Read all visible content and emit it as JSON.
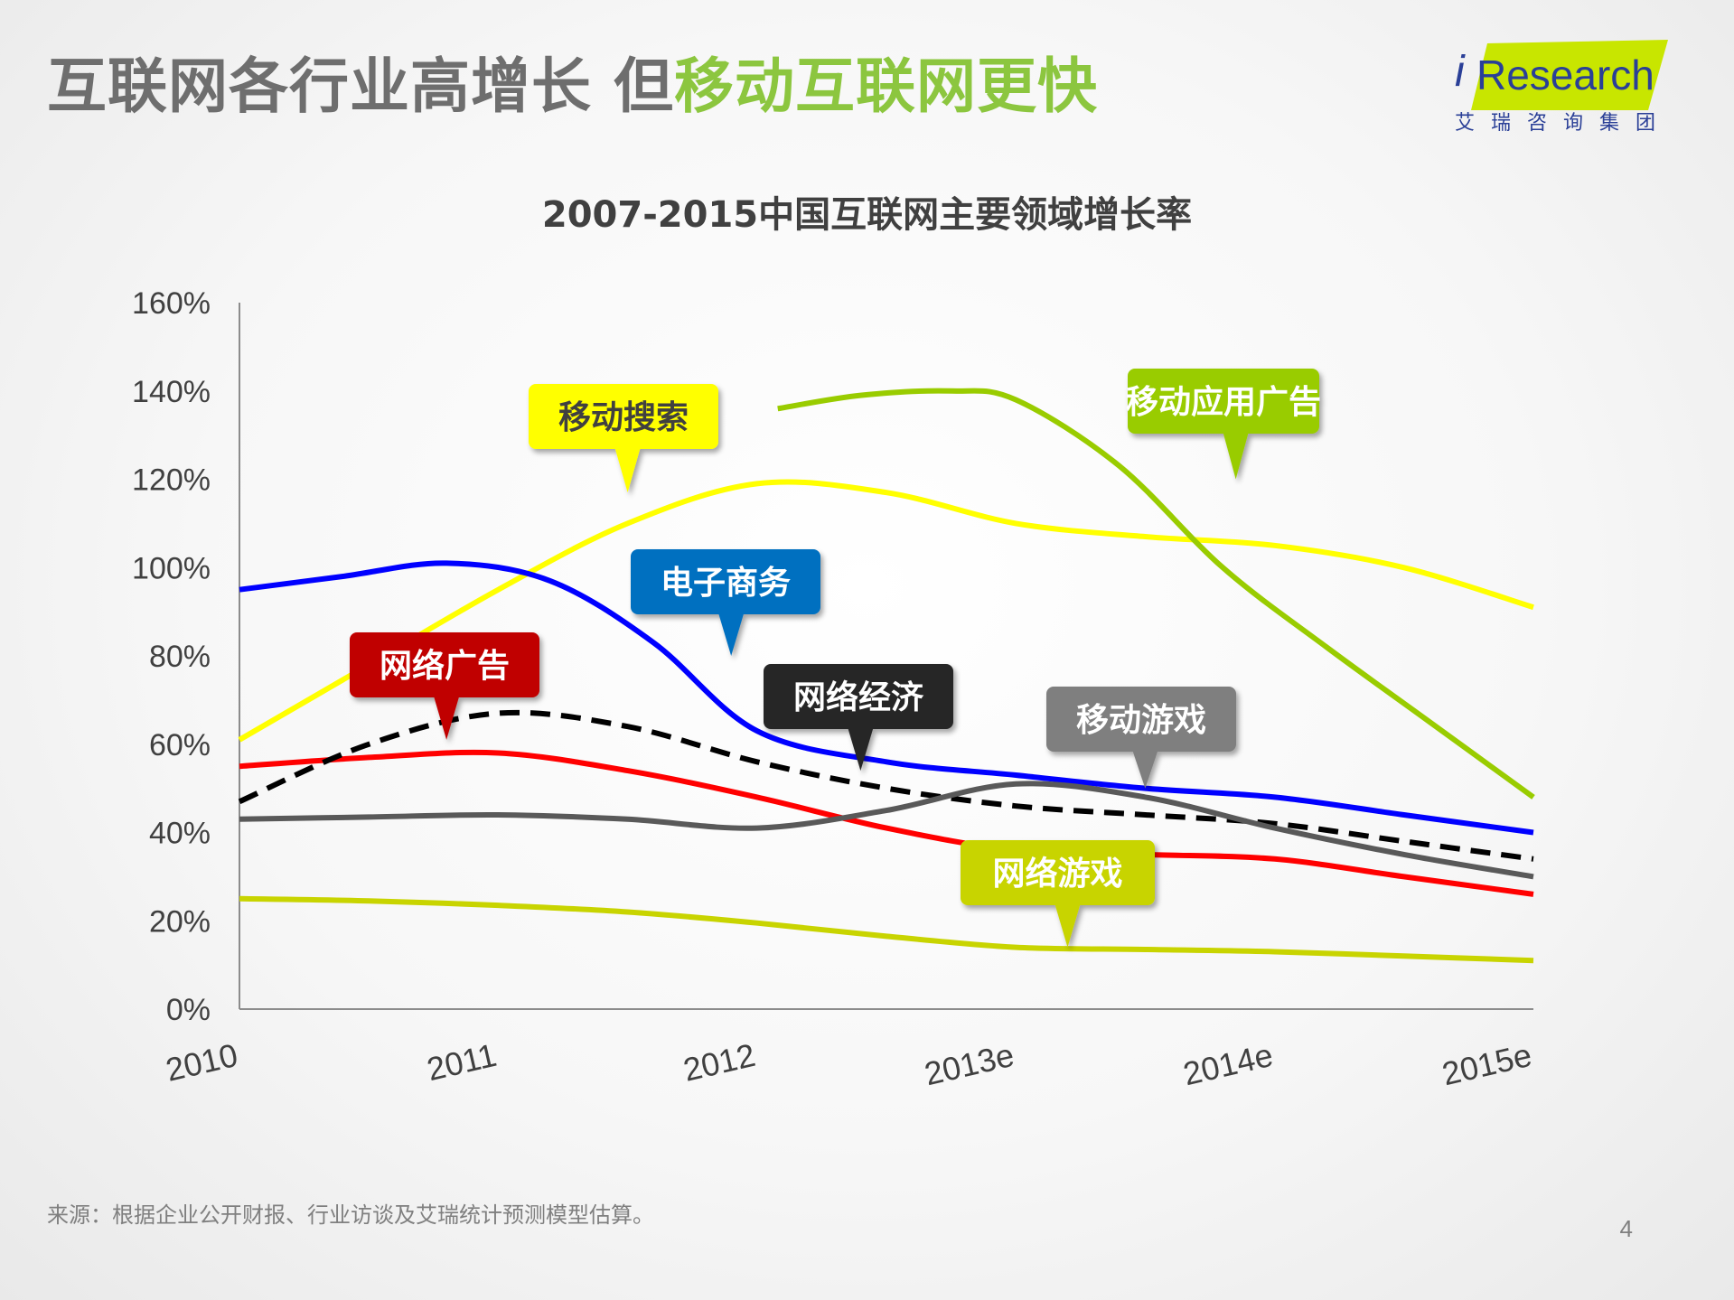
{
  "header": {
    "title_part1": "互联网各行业高增长 但",
    "title_part2": "移动互联网更快",
    "title_color_main": "#6e6e6e",
    "title_color_accent": "#8cc63f"
  },
  "logo": {
    "brand_i": "i",
    "brand_rest": "Research",
    "brand_cn": "艾瑞咨询集团",
    "brand_color": "#2a3f97",
    "band_color": "#c8e600"
  },
  "chart_data": {
    "type": "line",
    "title": "2007-2015中国互联网主要领域增长率",
    "categories": [
      "2010",
      "2011",
      "2012",
      "2013e",
      "2014e",
      "2015e"
    ],
    "y_ticks": [
      "0%",
      "20%",
      "40%",
      "60%",
      "80%",
      "100%",
      "120%",
      "140%",
      "160%"
    ],
    "ylim": [
      0,
      160
    ],
    "series": [
      {
        "name": "移动搜索",
        "color": "#ffff00",
        "dash": false,
        "x": [
          0,
          0.5,
          1,
          1.5,
          2,
          2.5,
          3,
          3.5,
          4,
          4.5,
          5
        ],
        "values": [
          61,
          78,
          95,
          110,
          119,
          117,
          110,
          107,
          105,
          100,
          91
        ]
      },
      {
        "name": "移动应用广告",
        "color": "#99cc00",
        "dash": false,
        "x": [
          2.08,
          2.4,
          2.75,
          3.0,
          3.4,
          3.8,
          4.2,
          4.6,
          5.0
        ],
        "values": [
          136,
          139,
          140,
          138,
          123,
          100,
          82,
          65,
          48
        ]
      },
      {
        "name": "电子商务",
        "color": "#0000ff",
        "dash": false,
        "x": [
          0,
          0.4,
          0.8,
          1.2,
          1.6,
          2,
          2.5,
          3,
          3.5,
          4,
          4.5,
          5
        ],
        "values": [
          95,
          98,
          101,
          97,
          83,
          63,
          56,
          53,
          50,
          48,
          44,
          40
        ]
      },
      {
        "name": "网络广告",
        "color": "#ff0000",
        "dash": false,
        "x": [
          0,
          0.5,
          1,
          1.5,
          2,
          2.5,
          3,
          3.5,
          4,
          4.5,
          5
        ],
        "values": [
          55,
          57,
          58,
          54,
          48,
          41,
          36,
          35,
          34,
          30,
          26
        ]
      },
      {
        "name": "网络经济",
        "color": "#000000",
        "dash": true,
        "x": [
          0,
          0.5,
          1,
          1.5,
          2,
          2.5,
          3,
          3.5,
          4,
          4.5,
          5
        ],
        "values": [
          47,
          60,
          67,
          64,
          56,
          50,
          46,
          44,
          42,
          38,
          34
        ]
      },
      {
        "name": "移动游戏",
        "color": "#595959",
        "dash": false,
        "x": [
          0,
          0.5,
          1,
          1.5,
          2,
          2.5,
          3,
          3.5,
          4,
          4.5,
          5
        ],
        "values": [
          43,
          43.5,
          44,
          43,
          41,
          45,
          51,
          48,
          41,
          35,
          30
        ]
      },
      {
        "name": "网络游戏",
        "color": "#c8d400",
        "dash": false,
        "x": [
          0,
          0.5,
          1,
          1.5,
          2,
          2.5,
          3,
          3.5,
          4,
          4.5,
          5
        ],
        "values": [
          25,
          24.5,
          23.5,
          22,
          19.5,
          16.5,
          14,
          13.5,
          13,
          12,
          11
        ]
      }
    ],
    "callouts": [
      {
        "label": "移动搜索",
        "bg": "#ffff00",
        "text_color": "#404040",
        "tip": [
          1.5,
          117
        ]
      },
      {
        "label": "移动应用广告",
        "bg": "#99cc00",
        "text_color": "#ffffff",
        "tip": [
          3.85,
          120
        ]
      },
      {
        "label": "电子商务",
        "bg": "#0070c0",
        "text_color": "#ffffff",
        "tip": [
          1.9,
          80
        ]
      },
      {
        "label": "网络广告",
        "bg": "#c00000",
        "text_color": "#ffffff",
        "tip": [
          0.8,
          61
        ]
      },
      {
        "label": "网络经济",
        "bg": "#262626",
        "text_color": "#ffffff",
        "tip": [
          2.4,
          54
        ]
      },
      {
        "label": "移动游戏",
        "bg": "#7f7f7f",
        "text_color": "#ffffff",
        "tip": [
          3.5,
          50
        ]
      },
      {
        "label": "网络游戏",
        "bg": "#c8d400",
        "text_color": "#ffffff",
        "tip": [
          3.2,
          14
        ]
      }
    ]
  },
  "footer": {
    "source": "来源：根据企业公开财报、行业访谈及艾瑞统计预测模型估算。",
    "page_number": "4"
  }
}
